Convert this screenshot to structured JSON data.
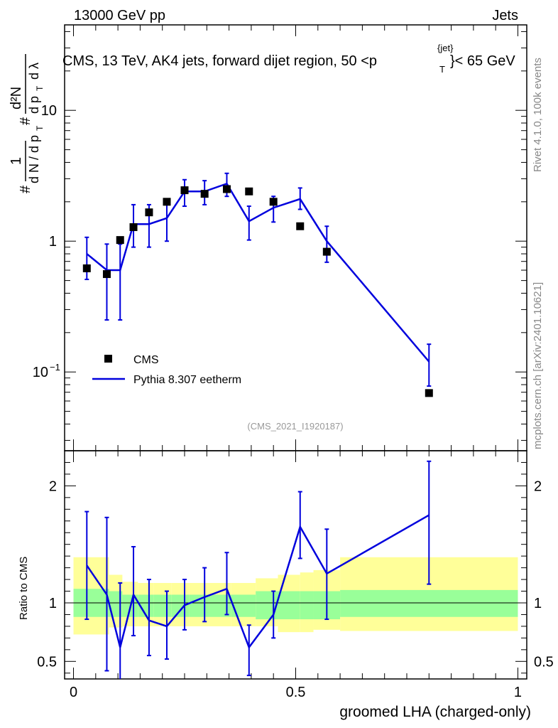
{
  "header": {
    "left": "13000 GeV pp",
    "right": "Jets"
  },
  "title": {
    "main": "CMS, 13 TeV, AK4 jets, forward dijet region, 50 <p",
    "sub": "T",
    "sup": "{jet}",
    "tail": "}< 65 GeV"
  },
  "side_labels": {
    "rivet": "Rivet 4.1.0,  100k events",
    "mcplots": "mcplots.cern.ch [arXiv:2401.10621]"
  },
  "watermark": "(CMS_2021_I1920187)",
  "y_label_main": {
    "hash1": "#",
    "one": "1",
    "dN": "d N / d p",
    "T1": "T",
    "hash2": "#",
    "d2N": "d²N",
    "dpT": "d p",
    "T2": "T",
    "dlambda": "d λ"
  },
  "ratio_ylabel": "Ratio to CMS",
  "xlabel": "groomed LHA (charged-only)",
  "legend": {
    "cms": "CMS",
    "mc": "Pythia 8.307 eetherm"
  },
  "colors": {
    "data": "#000000",
    "mc": "#0000dd",
    "band_inner": "#99ff99",
    "band_outer": "#ffff99"
  },
  "chart_data": {
    "type": "scatter",
    "x_range": [
      -0.02,
      1.02
    ],
    "x_ticks": [
      {
        "value": 0,
        "label": "0"
      },
      {
        "value": 0.5,
        "label": "0.5"
      },
      {
        "value": 1,
        "label": "1"
      }
    ],
    "main": {
      "y_scale": "log",
      "ylim": [
        0.025,
        45
      ],
      "y_ticks": [
        {
          "value": 0.1,
          "label": "10",
          "exp": "−1"
        },
        {
          "value": 1,
          "label": "1",
          "exp": ""
        },
        {
          "value": 10,
          "label": "10",
          "exp": ""
        }
      ],
      "cms_x": [
        0.03,
        0.075,
        0.105,
        0.135,
        0.17,
        0.21,
        0.25,
        0.295,
        0.345,
        0.395,
        0.45,
        0.51,
        0.57,
        0.8
      ],
      "cms_y": [
        0.62,
        0.56,
        1.02,
        1.28,
        1.66,
        2.0,
        2.45,
        2.3,
        2.5,
        2.4,
        2.0,
        1.3,
        0.83,
        0.069
      ],
      "mc_x": [
        0.03,
        0.075,
        0.105,
        0.135,
        0.17,
        0.21,
        0.25,
        0.295,
        0.345,
        0.395,
        0.45,
        0.51,
        0.57,
        0.8
      ],
      "mc_y": [
        0.8,
        0.6,
        0.6,
        1.35,
        1.35,
        1.5,
        2.4,
        2.4,
        2.75,
        1.42,
        1.8,
        2.1,
        1.0,
        0.12
      ],
      "mc_err_lo": [
        0.51,
        0.25,
        0.25,
        0.9,
        0.9,
        1.0,
        1.85,
        1.9,
        2.2,
        1.02,
        1.4,
        1.75,
        0.69,
        0.078
      ],
      "mc_err_hi": [
        1.07,
        0.95,
        0.95,
        1.9,
        1.9,
        1.98,
        2.95,
        2.9,
        3.3,
        1.85,
        2.2,
        2.55,
        1.3,
        0.163
      ],
      "mc_line": {
        "x": [
          0.03,
          0.075,
          0.105,
          0.135,
          0.17,
          0.21,
          0.25,
          0.295,
          0.345,
          0.395,
          0.45,
          0.51,
          0.57,
          0.8
        ],
        "y": [
          0.8,
          0.6,
          0.6,
          1.35,
          1.35,
          1.5,
          2.4,
          2.4,
          2.75,
          1.42,
          1.8,
          2.1,
          1.0,
          0.12
        ]
      }
    },
    "ratio": {
      "ylim": [
        0.35,
        2.3
      ],
      "y_ticks": [
        {
          "value": 0.5,
          "label": "0.5"
        },
        {
          "value": 1,
          "label": "1"
        },
        {
          "value": 2,
          "label": "2"
        }
      ],
      "band_x": [
        0.0,
        0.08,
        0.11,
        0.145,
        0.18,
        0.22,
        0.26,
        0.305,
        0.355,
        0.41,
        0.46,
        0.51,
        0.54,
        0.6,
        1.0
      ],
      "inner_lo": [
        0.88,
        0.88,
        0.88,
        0.88,
        0.88,
        0.88,
        0.88,
        0.88,
        0.88,
        0.86,
        0.86,
        0.86,
        0.86,
        0.88
      ],
      "inner_hi": [
        1.12,
        1.1,
        1.07,
        1.07,
        1.07,
        1.07,
        1.07,
        1.07,
        1.07,
        1.1,
        1.1,
        1.1,
        1.1,
        1.11
      ],
      "outer_lo": [
        0.73,
        0.79,
        0.8,
        0.8,
        0.8,
        0.8,
        0.8,
        0.8,
        0.8,
        0.8,
        0.75,
        0.75,
        0.77,
        0.76
      ],
      "outer_hi": [
        1.39,
        1.24,
        1.18,
        1.17,
        1.17,
        1.17,
        1.17,
        1.17,
        1.17,
        1.21,
        1.24,
        1.26,
        1.28,
        1.39
      ],
      "x": [
        0.03,
        0.075,
        0.105,
        0.135,
        0.17,
        0.21,
        0.25,
        0.295,
        0.345,
        0.395,
        0.45,
        0.51,
        0.57,
        0.8
      ],
      "y": [
        1.32,
        1.07,
        0.62,
        1.07,
        0.85,
        0.8,
        0.98,
        1.05,
        1.12,
        0.62,
        0.9,
        1.65,
        1.25,
        1.75
      ],
      "err_lo": [
        0.86,
        0.42,
        0.33,
        0.72,
        0.55,
        0.52,
        0.77,
        0.84,
        0.9,
        0.38,
        0.7,
        1.38,
        0.86,
        1.16
      ],
      "err_hi": [
        1.78,
        1.73,
        1.17,
        1.48,
        1.2,
        1.1,
        1.2,
        1.3,
        1.43,
        0.81,
        1.1,
        1.95,
        1.63,
        2.21
      ]
    }
  }
}
